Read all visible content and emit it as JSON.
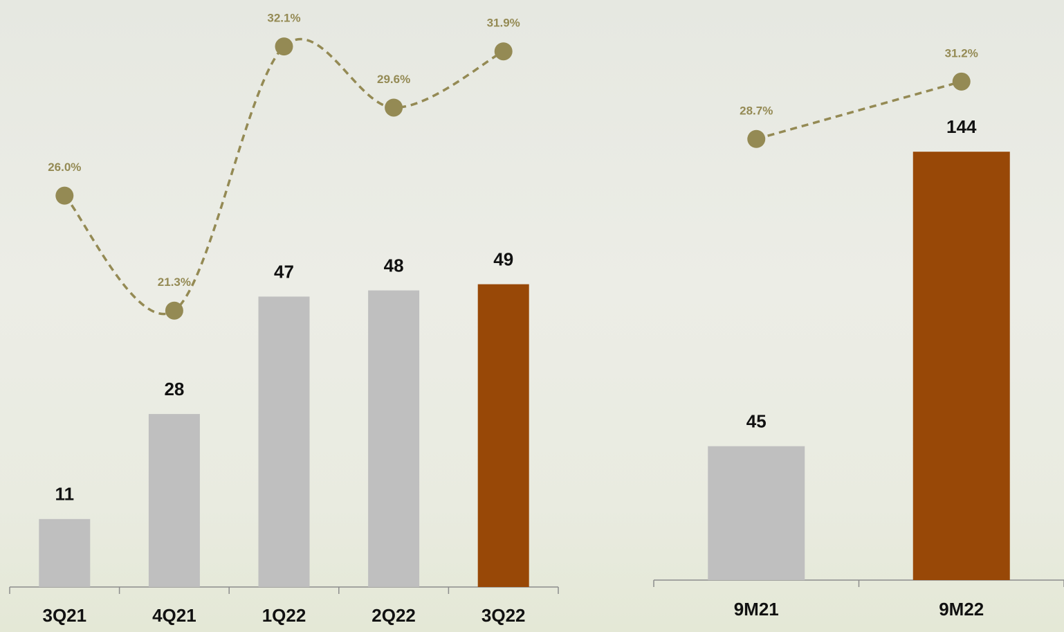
{
  "chart_data": [
    {
      "type": "bar",
      "categories": [
        "3Q21",
        "4Q21",
        "1Q22",
        "2Q22",
        "3Q22"
      ],
      "ylim": [
        0,
        95
      ],
      "y2lim": [
        10,
        34
      ],
      "series": [
        {
          "type": "bar",
          "values": [
            11,
            28,
            47,
            48,
            49
          ],
          "colors": [
            "#bfbfbf",
            "#bfbfbf",
            "#bfbfbf",
            "#bfbfbf",
            "#984807"
          ]
        },
        {
          "type": "line",
          "axis": "y2",
          "color": "#948a54",
          "dashed": true,
          "smooth": true,
          "values": [
            26.0,
            21.3,
            32.1,
            29.6,
            31.9
          ],
          "value_labels": [
            "26.0%",
            "21.3%",
            "32.1%",
            "29.6%",
            "31.9%"
          ]
        }
      ]
    },
    {
      "type": "bar",
      "categories": [
        "9M21",
        "9M22"
      ],
      "ylim": [
        0,
        195
      ],
      "y2lim": [
        9.5,
        34.75
      ],
      "series": [
        {
          "type": "bar",
          "values": [
            45,
            144
          ],
          "colors": [
            "#bfbfbf",
            "#984807"
          ]
        },
        {
          "type": "line",
          "axis": "y2",
          "color": "#948a54",
          "dashed": true,
          "smooth": false,
          "values": [
            28.7,
            31.2
          ],
          "value_labels": [
            "28.7%",
            "31.2%"
          ]
        }
      ]
    }
  ]
}
